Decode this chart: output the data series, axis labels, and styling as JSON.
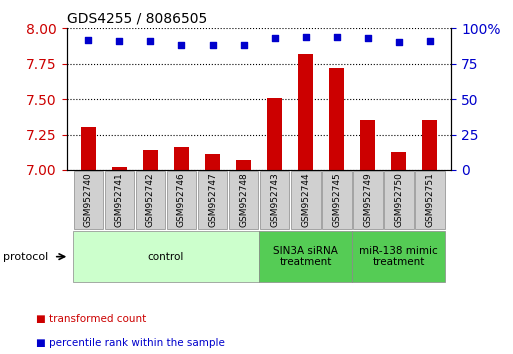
{
  "title": "GDS4255 / 8086505",
  "samples": [
    "GSM952740",
    "GSM952741",
    "GSM952742",
    "GSM952746",
    "GSM952747",
    "GSM952748",
    "GSM952743",
    "GSM952744",
    "GSM952745",
    "GSM952749",
    "GSM952750",
    "GSM952751"
  ],
  "transformed_counts": [
    7.3,
    7.02,
    7.14,
    7.16,
    7.11,
    7.07,
    7.51,
    7.82,
    7.72,
    7.35,
    7.13,
    7.35
  ],
  "percentile_ranks": [
    92,
    91,
    91,
    88,
    88,
    88,
    93,
    94,
    94,
    93,
    90,
    91
  ],
  "bar_color": "#cc0000",
  "dot_color": "#0000cc",
  "ylim_left": [
    7.0,
    8.0
  ],
  "ylim_right": [
    0,
    100
  ],
  "yticks_left": [
    7.0,
    7.25,
    7.5,
    7.75,
    8.0
  ],
  "yticks_right": [
    0,
    25,
    50,
    75,
    100
  ],
  "groups": [
    {
      "label": "control",
      "start": 0,
      "end": 6,
      "color": "#ccffcc"
    },
    {
      "label": "SIN3A siRNA\ntreatment",
      "start": 6,
      "end": 9,
      "color": "#55cc55"
    },
    {
      "label": "miR-138 mimic\ntreatment",
      "start": 9,
      "end": 12,
      "color": "#55cc55"
    }
  ],
  "legend_items": [
    {
      "label": "transformed count",
      "color": "#cc0000"
    },
    {
      "label": "percentile rank within the sample",
      "color": "#0000cc"
    }
  ],
  "protocol_label": "protocol",
  "background_color": "#ffffff",
  "plot_bg_color": "#ffffff",
  "tick_label_color_left": "#cc0000",
  "tick_label_color_right": "#0000cc",
  "sample_cell_color": "#d0d0d0",
  "sample_cell_edge": "#888888"
}
